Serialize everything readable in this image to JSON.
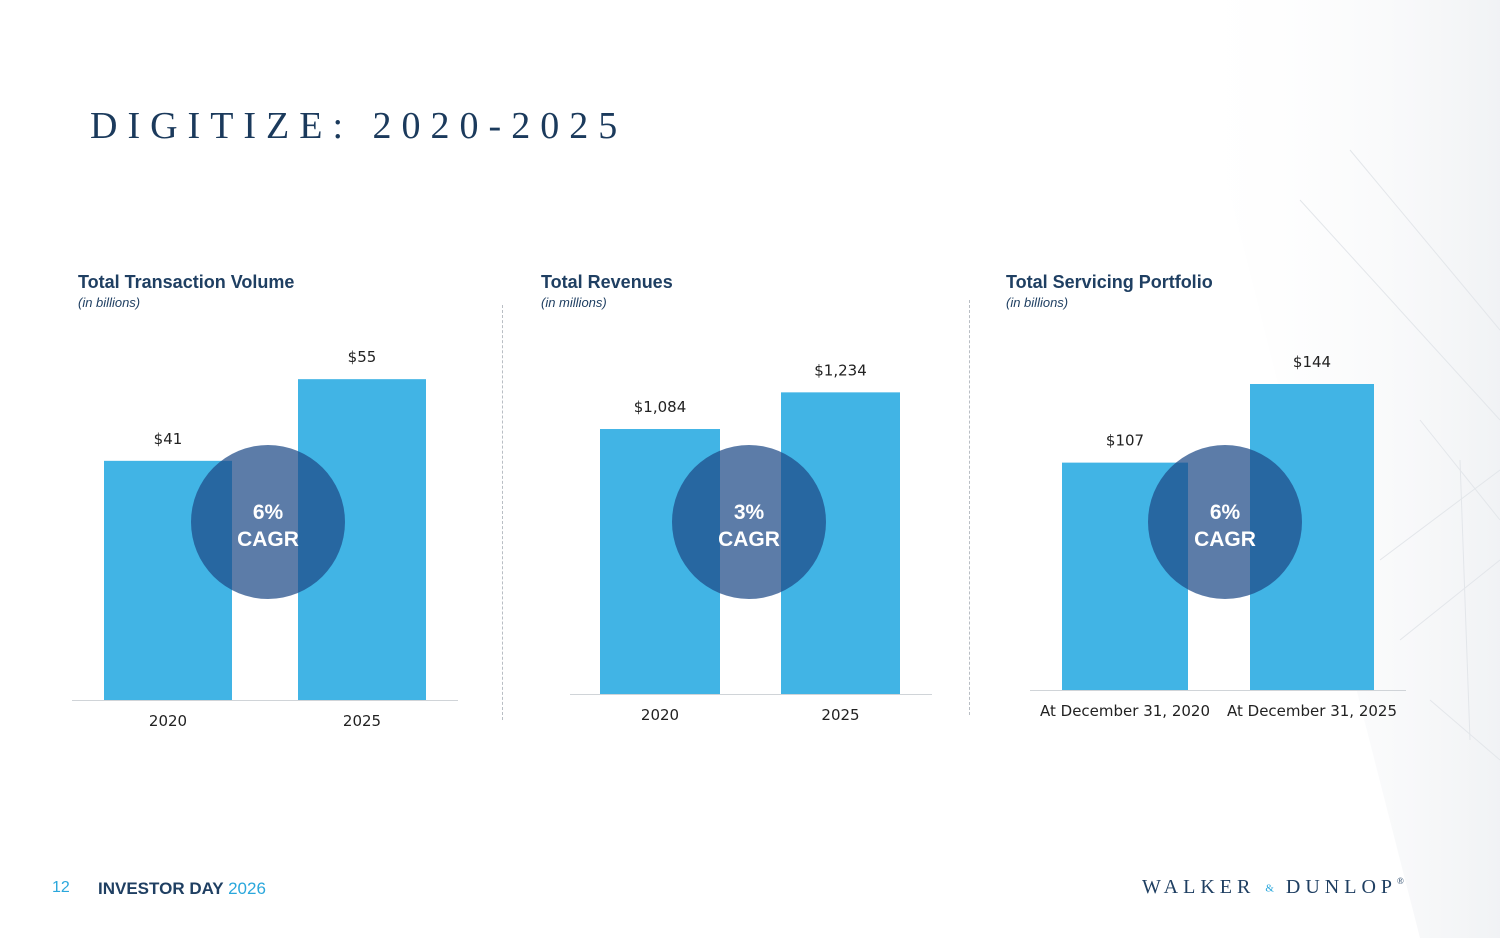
{
  "slide": {
    "title": "DIGITIZE: 2020-2025"
  },
  "colors": {
    "bar": "#41b4e5",
    "circle": "#1d4987",
    "title": "#1b3a5c",
    "accent": "#2aa7dc"
  },
  "chart_data": [
    {
      "type": "bar",
      "title": "Total Transaction Volume",
      "subtitle": "(in billions)",
      "categories": [
        "2020",
        "2025"
      ],
      "values": [
        41,
        55
      ],
      "value_labels": [
        "$41",
        "$55"
      ],
      "ylim": [
        0,
        60
      ],
      "cagr_value": "6%",
      "cagr_label": "CAGR"
    },
    {
      "type": "bar",
      "title": "Total Revenues",
      "subtitle": "(in millions)",
      "categories": [
        "2020",
        "2025"
      ],
      "values": [
        1084,
        1234
      ],
      "value_labels": [
        "$1,084",
        "$1,234"
      ],
      "ylim": [
        0,
        1350
      ],
      "cagr_value": "3%",
      "cagr_label": "CAGR"
    },
    {
      "type": "bar",
      "title": "Total Servicing Portfolio",
      "subtitle": "(in billions)",
      "categories": [
        "At December 31, 2020",
        "At December 31, 2025"
      ],
      "values": [
        107,
        144
      ],
      "value_labels": [
        "$107",
        "$144"
      ],
      "ylim": [
        0,
        160
      ],
      "cagr_value": "6%",
      "cagr_label": "CAGR"
    }
  ],
  "footer": {
    "page_number": "12",
    "event": "INVESTOR DAY",
    "year": "2026"
  },
  "logo": {
    "left": "WALKER",
    "amp": "&",
    "right": "DUNLOP",
    "reg": "®"
  }
}
